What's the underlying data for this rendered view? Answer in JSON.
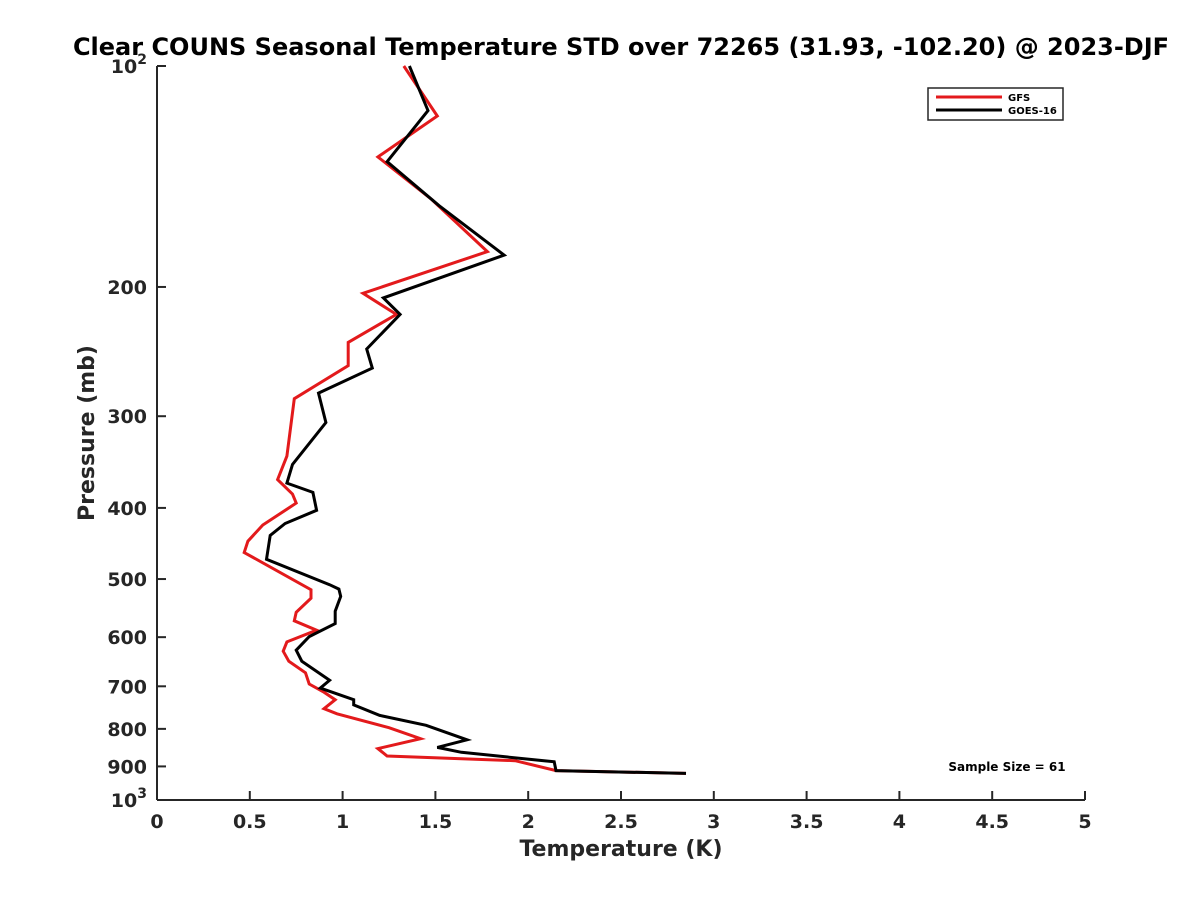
{
  "chart_data": {
    "type": "line",
    "title": "Clear COUNS Seasonal Temperature STD over 72265 (31.93, -102.20) @ 2023-DJF",
    "xlabel": "Temperature (K)",
    "ylabel": "Pressure (mb)",
    "xlim": [
      0,
      5
    ],
    "ylim": [
      100,
      1000
    ],
    "yscale": "log",
    "y_reversed": true,
    "x_ticks": [
      0,
      0.5,
      1,
      1.5,
      2,
      2.5,
      3,
      3.5,
      4,
      4.5,
      5
    ],
    "x_tick_labels": [
      "0",
      "0.5",
      "1",
      "1.5",
      "2",
      "2.5",
      "3",
      "3.5",
      "4",
      "4.5",
      "5"
    ],
    "y_ticks": [
      100,
      200,
      300,
      400,
      500,
      600,
      700,
      800,
      900,
      1000
    ],
    "y_tick_labels": [
      {
        "base": "10",
        "exp": "2"
      },
      {
        "text": "200"
      },
      {
        "text": "300"
      },
      {
        "text": "400"
      },
      {
        "text": "500"
      },
      {
        "text": "600"
      },
      {
        "text": "700"
      },
      {
        "text": "800"
      },
      {
        "text": "900"
      },
      {
        "base": "10",
        "exp": "3"
      }
    ],
    "legend_position": "top-right",
    "annotation": "Sample Size = 61",
    "series": [
      {
        "name": "GFS",
        "color": "#e31a1c",
        "points": [
          [
            1.33,
            100
          ],
          [
            1.51,
            117
          ],
          [
            1.19,
            133
          ],
          [
            1.48,
            152
          ],
          [
            1.78,
            179
          ],
          [
            1.11,
            204
          ],
          [
            1.29,
            218
          ],
          [
            1.03,
            238
          ],
          [
            1.03,
            256
          ],
          [
            0.74,
            284
          ],
          [
            0.7,
            340
          ],
          [
            0.65,
            366
          ],
          [
            0.73,
            383
          ],
          [
            0.75,
            394
          ],
          [
            0.57,
            422
          ],
          [
            0.49,
            444
          ],
          [
            0.47,
            460
          ],
          [
            0.83,
            517
          ],
          [
            0.83,
            531
          ],
          [
            0.75,
            555
          ],
          [
            0.74,
            570
          ],
          [
            0.86,
            587
          ],
          [
            0.7,
            609
          ],
          [
            0.68,
            627
          ],
          [
            0.71,
            647
          ],
          [
            0.8,
            671
          ],
          [
            0.82,
            695
          ],
          [
            0.9,
            713
          ],
          [
            0.96,
            730
          ],
          [
            0.9,
            751
          ],
          [
            0.97,
            763
          ],
          [
            1.25,
            797
          ],
          [
            1.42,
            825
          ],
          [
            1.19,
            851
          ],
          [
            1.24,
            871
          ],
          [
            1.93,
            884
          ],
          [
            2.15,
            912
          ],
          [
            2.85,
            920
          ]
        ]
      },
      {
        "name": "GOES-16",
        "color": "#000000",
        "points": [
          [
            1.36,
            100
          ],
          [
            1.46,
            115
          ],
          [
            1.24,
            135
          ],
          [
            1.52,
            155
          ],
          [
            1.87,
            181
          ],
          [
            1.22,
            207
          ],
          [
            1.31,
            218
          ],
          [
            1.13,
            243
          ],
          [
            1.16,
            258
          ],
          [
            0.87,
            279
          ],
          [
            0.91,
            306
          ],
          [
            0.73,
            349
          ],
          [
            0.7,
            370
          ],
          [
            0.84,
            381
          ],
          [
            0.86,
            403
          ],
          [
            0.69,
            420
          ],
          [
            0.61,
            436
          ],
          [
            0.59,
            470
          ],
          [
            0.93,
            509
          ],
          [
            0.98,
            516
          ],
          [
            0.99,
            528
          ],
          [
            0.96,
            553
          ],
          [
            0.96,
            575
          ],
          [
            0.82,
            599
          ],
          [
            0.75,
            625
          ],
          [
            0.78,
            647
          ],
          [
            0.93,
            687
          ],
          [
            0.88,
            704
          ],
          [
            1.06,
            730
          ],
          [
            1.06,
            742
          ],
          [
            1.2,
            767
          ],
          [
            1.45,
            791
          ],
          [
            1.67,
            828
          ],
          [
            1.51,
            848
          ],
          [
            1.64,
            861
          ],
          [
            2.14,
            887
          ],
          [
            2.15,
            912
          ],
          [
            2.85,
            920
          ]
        ]
      }
    ]
  }
}
